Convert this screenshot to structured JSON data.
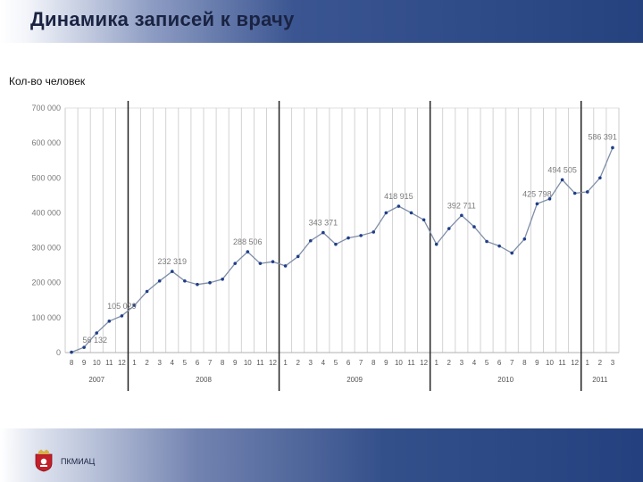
{
  "header": {
    "title": "Динамика записей к врачу"
  },
  "footer": {
    "org": "ПКМИАЦ"
  },
  "chart_data": {
    "type": "line",
    "ylabel": "Кол-во человек",
    "ylim": [
      0,
      700000
    ],
    "y_ticks": [
      "0",
      "100 000",
      "200 000",
      "300 000",
      "400 000",
      "500 000",
      "600 000",
      "700 000"
    ],
    "grid": true,
    "x_labels": [
      "8",
      "9",
      "10",
      "11",
      "12",
      "1",
      "2",
      "3",
      "4",
      "5",
      "6",
      "7",
      "8",
      "9",
      "10",
      "11",
      "12",
      "1",
      "2",
      "3",
      "4",
      "5",
      "6",
      "7",
      "8",
      "9",
      "10",
      "11",
      "12",
      "1",
      "2",
      "3",
      "4",
      "5",
      "6",
      "7",
      "8",
      "9",
      "10",
      "11",
      "12",
      "1",
      "2",
      "3"
    ],
    "years": [
      {
        "label": "2007",
        "start": 0,
        "end": 4
      },
      {
        "label": "2008",
        "start": 5,
        "end": 16
      },
      {
        "label": "2009",
        "start": 17,
        "end": 28
      },
      {
        "label": "2010",
        "start": 29,
        "end": 40
      },
      {
        "label": "2011",
        "start": 41,
        "end": 43
      }
    ],
    "values": [
      1000,
      15000,
      56132,
      90000,
      105029,
      135000,
      175000,
      205000,
      232319,
      205000,
      195000,
      200000,
      210000,
      255000,
      288506,
      255000,
      260000,
      248000,
      275000,
      320000,
      343371,
      310000,
      328000,
      335000,
      345000,
      400000,
      418915,
      400000,
      380000,
      310000,
      355000,
      392711,
      360000,
      318000,
      305000,
      285000,
      325000,
      425798,
      440000,
      494505,
      456000,
      460000,
      500000,
      586391
    ],
    "data_labels": [
      {
        "index": 2,
        "text": "56 132"
      },
      {
        "index": 4,
        "text": "105 029"
      },
      {
        "index": 8,
        "text": "232 319"
      },
      {
        "index": 14,
        "text": "288 506"
      },
      {
        "index": 20,
        "text": "343 371"
      },
      {
        "index": 26,
        "text": "418 915"
      },
      {
        "index": 31,
        "text": "392 711"
      },
      {
        "index": 37,
        "text": "425 798"
      },
      {
        "index": 39,
        "text": "494 505"
      },
      {
        "index": 43,
        "text": "586 391"
      }
    ],
    "colors": {
      "line": "#7f8ea8",
      "marker": "#1f3e8a",
      "grid": "#c8c8c8",
      "separator": "#222222",
      "text": "#7a7a7a"
    }
  }
}
